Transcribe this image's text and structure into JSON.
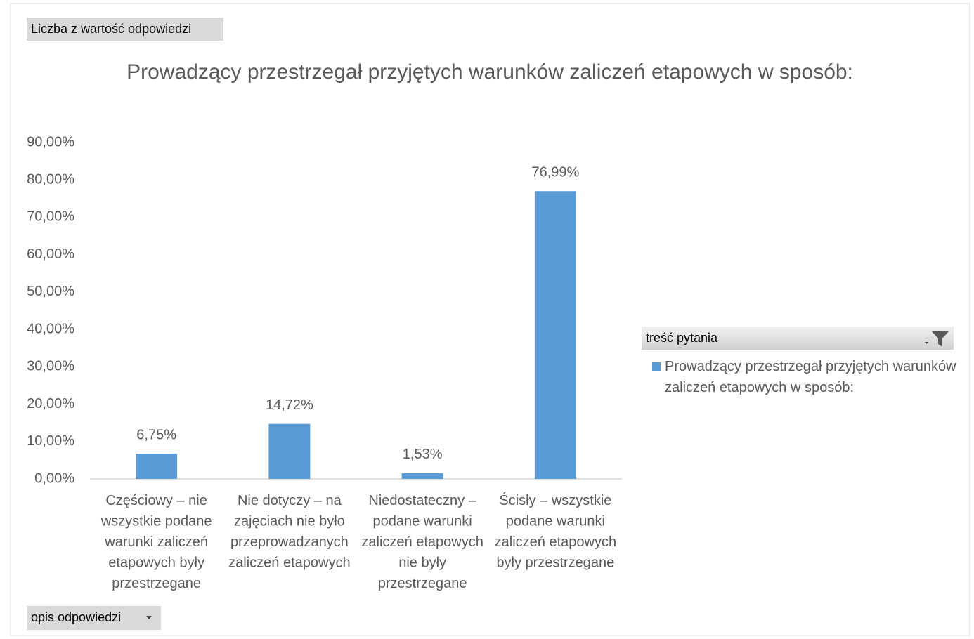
{
  "value_field_button": "Liczba z wartość odpowiedzi",
  "axis_field_button": "opis odpowiedzi",
  "chart_data": {
    "type": "bar",
    "title": "Prowadzący przestrzegał przyjętych warunków zaliczeń etapowych w sposób:",
    "categories": [
      "Częściowy – nie wszystkie podane warunki zaliczeń etapowych były przestrzegane",
      "Nie dotyczy – na zajęciach nie było przeprowadzanych zaliczeń etapowych",
      "Niedostateczny – podane warunki zaliczeń etapowych nie były przestrzegane",
      "Ścisły – wszystkie podane warunki zaliczeń etapowych były przestrzegane"
    ],
    "series": [
      {
        "name": "Prowadzący przestrzegał przyjętych warunków zaliczeń etapowych w sposób:",
        "color": "#5b9bd5",
        "values": [
          6.75,
          14.72,
          1.53,
          76.99
        ],
        "value_labels": [
          "6,75%",
          "14,72%",
          "1,53%",
          "76,99%"
        ]
      }
    ],
    "legend_title": "treść pytania",
    "legend": "right",
    "grid": false,
    "ylim": [
      0,
      90
    ],
    "yticks": [
      {
        "value": 0,
        "label": "0,00%"
      },
      {
        "value": 10,
        "label": "10,00%"
      },
      {
        "value": 20,
        "label": "20,00%"
      },
      {
        "value": 30,
        "label": "30,00%"
      },
      {
        "value": 40,
        "label": "40,00%"
      },
      {
        "value": 50,
        "label": "50,00%"
      },
      {
        "value": 60,
        "label": "60,00%"
      },
      {
        "value": 70,
        "label": "70,00%"
      },
      {
        "value": 80,
        "label": "80,00%"
      },
      {
        "value": 90,
        "label": "90,00%"
      }
    ]
  }
}
